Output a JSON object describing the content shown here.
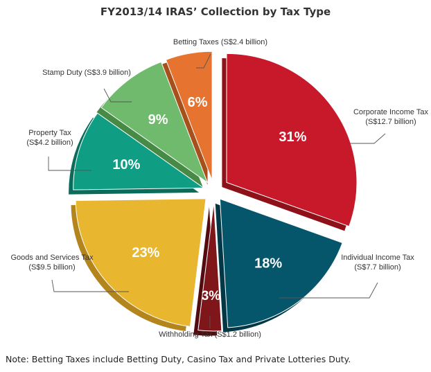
{
  "chart_data": {
    "type": "pie",
    "title": "FY2013/14 IRAS’ Collection by Tax Type",
    "slices": [
      {
        "name": "Corporate Income Tax",
        "amount": "(S$12.7 billion)",
        "value": 12.7,
        "pct_label": "31%",
        "color": "#c8192b",
        "side_color": "#8e1019"
      },
      {
        "name": "Individual Income Tax",
        "amount": "(S$7.7 billion)",
        "value": 7.7,
        "pct_label": "18%",
        "color": "#05566b",
        "side_color": "#023845"
      },
      {
        "name": "Withholding Tax",
        "amount": "(S$1.2 billion)",
        "value": 1.2,
        "pct_label": "3%",
        "color": "#7f1619",
        "side_color": "#520c0f"
      },
      {
        "name": "Goods and Services Tax",
        "amount": "(S$9.5 billion)",
        "value": 9.5,
        "pct_label": "23%",
        "color": "#e8b62f",
        "side_color": "#b3851c"
      },
      {
        "name": "Property Tax",
        "amount": "(S$4.2 billion)",
        "value": 4.2,
        "pct_label": "10%",
        "color": "#0f9e84",
        "side_color": "#0a6d5b"
      },
      {
        "name": "Stamp Duty",
        "amount": "(S$3.9 billion)",
        "value": 3.9,
        "pct_label": "9%",
        "color": "#6fba6d",
        "side_color": "#478a45"
      },
      {
        "name": "Betting Taxes",
        "amount": "(S$2.4 billion)",
        "value": 2.4,
        "pct_label": "6%",
        "color": "#e67430",
        "side_color": "#a8501b"
      }
    ],
    "note": "Note: Betting Taxes include Betting Duty, Casino Tax and Private Lotteries Duty."
  }
}
